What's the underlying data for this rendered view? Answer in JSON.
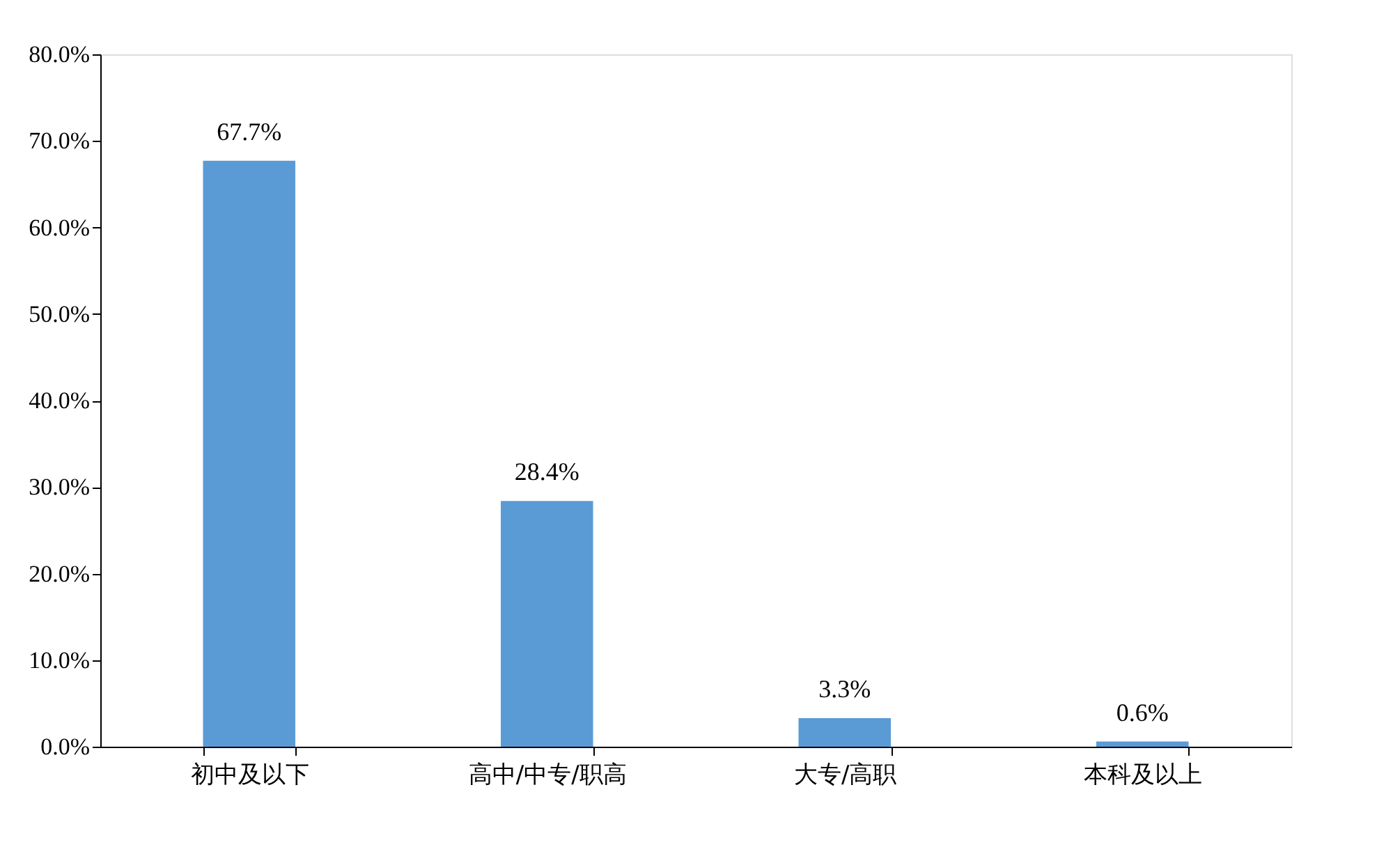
{
  "chart_data": {
    "type": "bar",
    "categories": [
      "初中及以下",
      "高中/中专/职高",
      "大专/高职",
      "本科及以上"
    ],
    "values": [
      67.7,
      28.4,
      3.3,
      0.6
    ],
    "value_labels": [
      "67.7%",
      "28.4%",
      "3.3%",
      "0.6%"
    ],
    "color": "#5b9bd5",
    "ylim": [
      0,
      80
    ],
    "yticks": [
      {
        "value": 0,
        "label": "0.0%"
      },
      {
        "value": 10,
        "label": "10.0%"
      },
      {
        "value": 20,
        "label": "20.0%"
      },
      {
        "value": 30,
        "label": "30.0%"
      },
      {
        "value": 40,
        "label": "40.0%"
      },
      {
        "value": 50,
        "label": "50.0%"
      },
      {
        "value": 60,
        "label": "60.0%"
      },
      {
        "value": 70,
        "label": "70.0%"
      },
      {
        "value": 80,
        "label": "80.0%"
      }
    ],
    "grid": false
  }
}
